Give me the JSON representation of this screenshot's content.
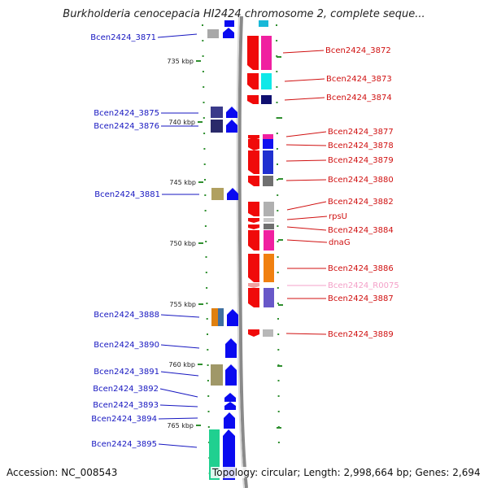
{
  "title": "Burkholderia cenocepacia HI2424 chromosome 2, complete seque...",
  "footer": {
    "accession": "Accession: NC_008543",
    "summary": "Topology: circular; Length: 2,998,664 bp; Genes: 2,694"
  },
  "ruler": [
    "735 kbp",
    "740 kbp",
    "745 kbp",
    "750 kbp",
    "755 kbp",
    "760 kbp",
    "765 kbp"
  ],
  "left_labels": [
    "Bcen2424_3871",
    "Bcen2424_3875",
    "Bcen2424_3876",
    "Bcen2424_3881",
    "Bcen2424_3888",
    "Bcen2424_3890",
    "Bcen2424_3891",
    "Bcen2424_3892",
    "Bcen2424_3893",
    "Bcen2424_3894",
    "Bcen2424_3895"
  ],
  "right_labels": [
    "Bcen2424_3872",
    "Bcen2424_3873",
    "Bcen2424_3874",
    "Bcen2424_3877",
    "Bcen2424_3878",
    "Bcen2424_3879",
    "Bcen2424_3880",
    "Bcen2424_3882",
    "rpsU",
    "Bcen2424_3884",
    "dnaG",
    "Bcen2424_3886",
    "Bcen2424_R0075",
    "Bcen2424_3887",
    "Bcen2424_3889"
  ],
  "colors": {
    "forward_cds": "#0a0af0",
    "reverse_cds": "#f00a0a",
    "label_left": "#1616c0",
    "label_right": "#d01010",
    "label_rna": "#f4a0c8",
    "ruler_dots": "#2f8f2f",
    "backbone": "#8a8a8a"
  }
}
